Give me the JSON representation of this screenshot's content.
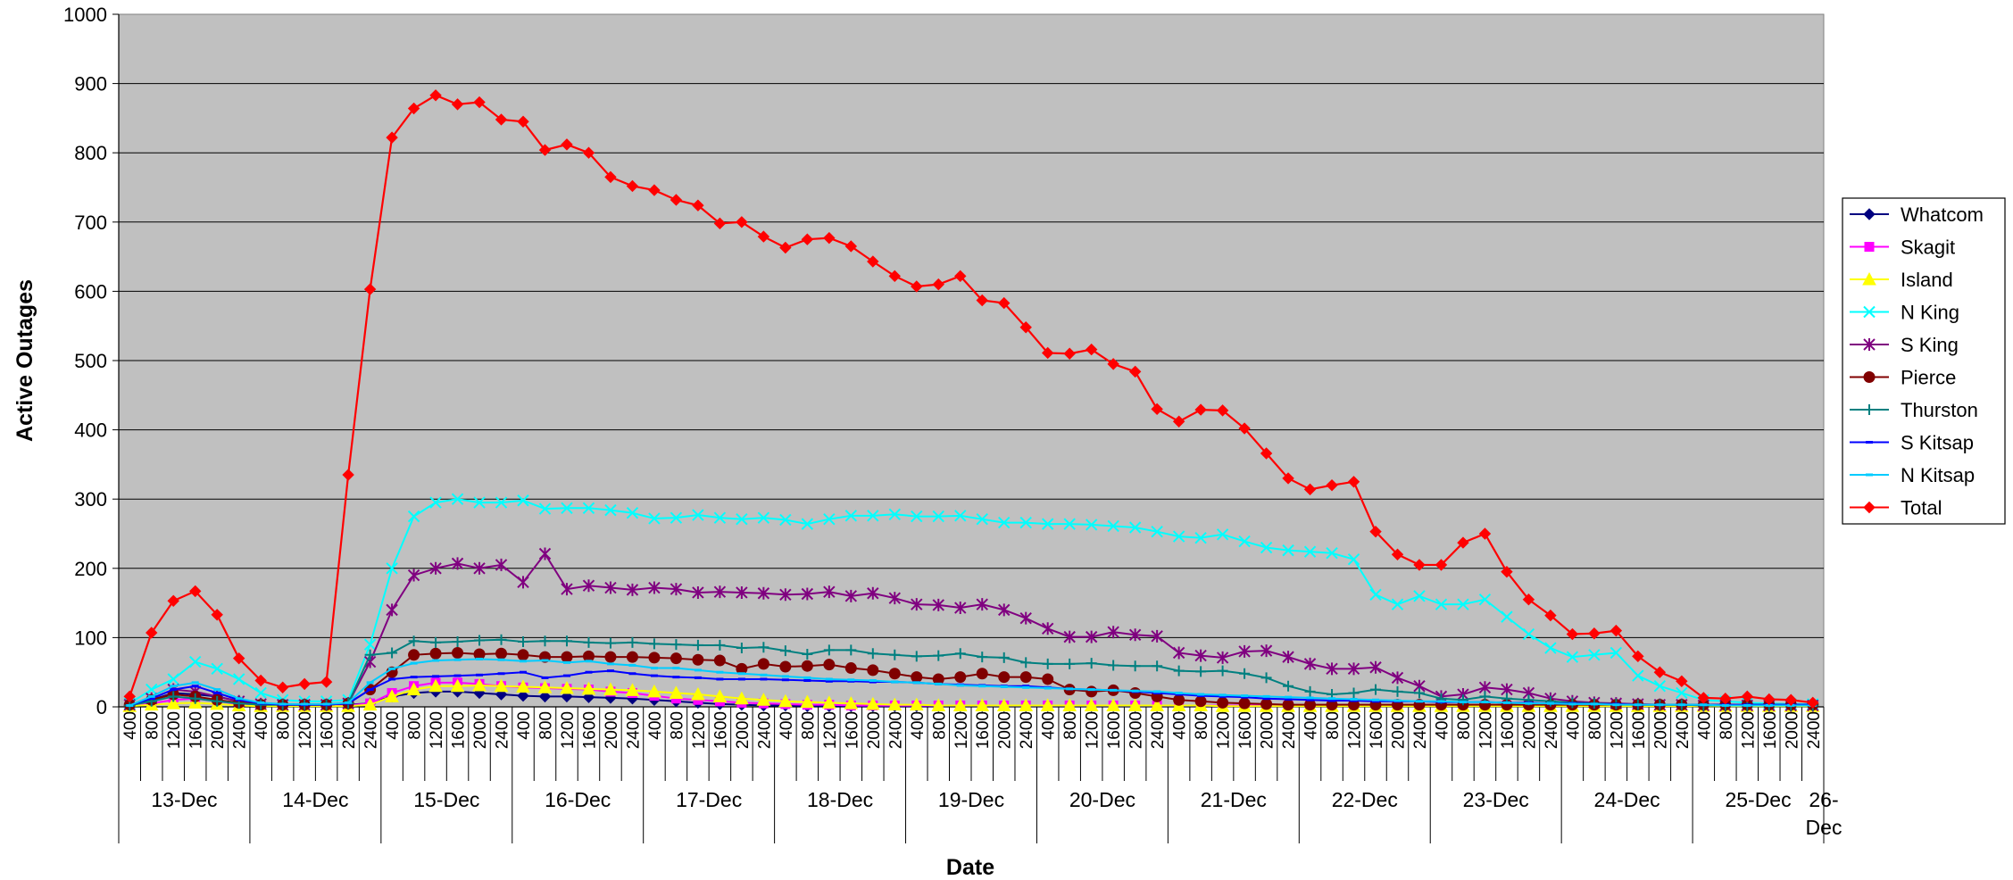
{
  "chart_data": {
    "type": "line",
    "title": "",
    "xlabel": "Date",
    "ylabel": "Active Outages",
    "ylim": [
      0,
      1000
    ],
    "yticks": [
      "0",
      "100",
      "200",
      "300",
      "400",
      "500",
      "600",
      "700",
      "800",
      "900",
      "1000"
    ],
    "grid": true,
    "legend_position": "right",
    "x_tick_labels": [
      "400",
      "800",
      "1200",
      "1600",
      "2000",
      "2400",
      "400",
      "800",
      "1200",
      "1600",
      "2000",
      "2400",
      "400",
      "800",
      "1200",
      "1600",
      "2000",
      "2400",
      "400",
      "800",
      "1200",
      "1600",
      "2000",
      "2400",
      "400",
      "800",
      "1200",
      "1600",
      "2000",
      "2400",
      "400",
      "800",
      "1200",
      "1600",
      "2000",
      "2400",
      "400",
      "800",
      "1200",
      "1600",
      "2000",
      "2400",
      "400",
      "800",
      "1200",
      "1600",
      "2000",
      "2400",
      "400",
      "800",
      "1200",
      "1600",
      "2000",
      "2400",
      "400",
      "800",
      "1200",
      "1600",
      "2000",
      "2400",
      "400",
      "800",
      "1200",
      "1600",
      "2000",
      "2400",
      "400",
      "800",
      "1200",
      "1600",
      "2000",
      "2400",
      "400",
      "800",
      "1200",
      "1600",
      "2000",
      "2400"
    ],
    "day_labels": [
      "13-Dec",
      "14-Dec",
      "15-Dec",
      "16-Dec",
      "17-Dec",
      "18-Dec",
      "19-Dec",
      "20-Dec",
      "21-Dec",
      "22-Dec",
      "23-Dec",
      "24-Dec",
      "25-Dec",
      "26-Dec"
    ],
    "series": [
      {
        "name": "Whatcom",
        "color": "#000080",
        "marker": "diamond",
        "values": [
          2,
          10,
          20,
          18,
          15,
          8,
          4,
          3,
          3,
          3,
          3,
          5,
          15,
          20,
          22,
          22,
          20,
          18,
          16,
          15,
          15,
          14,
          13,
          12,
          10,
          8,
          6,
          4,
          3,
          2,
          2,
          1,
          1,
          1,
          1,
          1,
          1,
          1,
          1,
          1,
          1,
          1,
          1,
          1,
          1,
          1,
          1,
          1,
          1,
          1,
          1,
          1,
          1,
          1,
          1,
          1,
          1,
          1,
          1,
          1,
          1,
          1,
          1,
          1,
          1,
          1,
          1,
          1,
          1,
          1,
          1,
          1,
          1,
          1,
          1,
          1,
          1,
          1
        ]
      },
      {
        "name": "Skagit",
        "color": "#FF00FF",
        "marker": "square",
        "values": [
          1,
          5,
          10,
          12,
          8,
          4,
          2,
          2,
          2,
          2,
          2,
          5,
          20,
          30,
          35,
          35,
          33,
          30,
          28,
          27,
          26,
          25,
          22,
          20,
          16,
          12,
          10,
          8,
          6,
          5,
          4,
          3,
          3,
          2,
          2,
          2,
          2,
          2,
          2,
          2,
          2,
          2,
          2,
          2,
          2,
          2,
          2,
          2,
          2,
          2,
          2,
          2,
          2,
          2,
          2,
          2,
          2,
          2,
          2,
          2,
          2,
          2,
          2,
          2,
          2,
          2,
          2,
          2,
          2,
          2,
          2,
          2,
          2,
          2,
          2,
          2,
          2,
          2
        ]
      },
      {
        "name": "Island",
        "color": "#FFFF00",
        "marker": "triangle",
        "values": [
          1,
          3,
          5,
          6,
          4,
          2,
          1,
          1,
          1,
          1,
          1,
          3,
          15,
          25,
          30,
          30,
          31,
          30,
          29,
          28,
          27,
          26,
          25,
          24,
          22,
          20,
          18,
          15,
          12,
          10,
          8,
          7,
          6,
          5,
          4,
          3,
          3,
          2,
          2,
          2,
          2,
          2,
          2,
          2,
          2,
          2,
          2,
          2,
          2,
          2,
          1,
          1,
          1,
          1,
          1,
          1,
          1,
          1,
          1,
          1,
          1,
          1,
          1,
          1,
          1,
          1,
          1,
          1,
          1,
          1,
          1,
          1,
          1,
          1,
          1,
          1,
          1,
          1
        ]
      },
      {
        "name": "N King",
        "color": "#00FFFF",
        "marker": "x",
        "values": [
          5,
          25,
          40,
          65,
          55,
          40,
          20,
          10,
          8,
          8,
          10,
          90,
          200,
          275,
          295,
          300,
          295,
          295,
          298,
          286,
          287,
          287,
          284,
          280,
          272,
          273,
          277,
          273,
          271,
          273,
          270,
          264,
          271,
          276,
          276,
          278,
          275,
          275,
          276,
          271,
          266,
          266,
          264,
          264,
          263,
          261,
          259,
          253,
          246,
          244,
          249,
          239,
          230,
          226,
          224,
          222,
          213,
          162,
          148,
          160,
          148,
          148,
          155,
          130,
          105,
          85,
          72,
          75,
          78,
          45,
          30,
          20,
          10,
          8,
          6,
          5,
          4,
          4
        ]
      },
      {
        "name": "S King",
        "color": "#800080",
        "marker": "star",
        "values": [
          3,
          12,
          25,
          22,
          15,
          8,
          4,
          3,
          3,
          3,
          5,
          65,
          140,
          190,
          200,
          207,
          200,
          205,
          180,
          221,
          170,
          175,
          172,
          169,
          172,
          170,
          165,
          166,
          165,
          164,
          162,
          163,
          166,
          160,
          164,
          157,
          148,
          147,
          143,
          148,
          140,
          128,
          113,
          101,
          101,
          108,
          104,
          102,
          78,
          74,
          71,
          80,
          81,
          72,
          62,
          55,
          55,
          57,
          42,
          30,
          15,
          18,
          28,
          25,
          20,
          12,
          8,
          6,
          5,
          4,
          3,
          3,
          2,
          2,
          2,
          2,
          2,
          2
        ]
      },
      {
        "name": "Pierce",
        "color": "#800000",
        "marker": "circle",
        "values": [
          3,
          10,
          18,
          15,
          10,
          6,
          3,
          3,
          3,
          3,
          5,
          25,
          50,
          75,
          77,
          78,
          76,
          77,
          75,
          72,
          72,
          73,
          72,
          72,
          71,
          70,
          68,
          67,
          55,
          62,
          58,
          59,
          61,
          56,
          53,
          48,
          43,
          40,
          43,
          48,
          43,
          43,
          40,
          25,
          22,
          24,
          20,
          15,
          10,
          8,
          6,
          5,
          4,
          3,
          3,
          3,
          3,
          3,
          3,
          3,
          3,
          3,
          3,
          3,
          3,
          3,
          3,
          3,
          3,
          3,
          3,
          3,
          3,
          3,
          3,
          3,
          3,
          3
        ]
      },
      {
        "name": "Thurston",
        "color": "#008080",
        "marker": "plus",
        "values": [
          2,
          8,
          15,
          12,
          8,
          5,
          3,
          3,
          3,
          3,
          5,
          75,
          78,
          95,
          93,
          94,
          96,
          97,
          94,
          95,
          95,
          93,
          92,
          93,
          91,
          90,
          89,
          89,
          85,
          86,
          81,
          76,
          82,
          82,
          77,
          75,
          73,
          74,
          77,
          72,
          71,
          64,
          62,
          62,
          63,
          60,
          59,
          59,
          52,
          51,
          52,
          48,
          42,
          30,
          22,
          18,
          20,
          25,
          22,
          20,
          12,
          10,
          15,
          12,
          10,
          8,
          6,
          5,
          4,
          3,
          3,
          3,
          2,
          2,
          2,
          2,
          2,
          2
        ]
      },
      {
        "name": "S Kitsap",
        "color": "#0000FF",
        "marker": "dash",
        "values": [
          2,
          12,
          25,
          30,
          20,
          10,
          5,
          3,
          3,
          3,
          5,
          25,
          40,
          43,
          44,
          45,
          46,
          48,
          50,
          42,
          45,
          50,
          52,
          48,
          45,
          43,
          42,
          40,
          40,
          40,
          39,
          38,
          37,
          37,
          36,
          36,
          35,
          33,
          32,
          31,
          30,
          30,
          28,
          26,
          25,
          24,
          22,
          20,
          18,
          16,
          15,
          14,
          12,
          11,
          10,
          9,
          9,
          8,
          8,
          8,
          7,
          7,
          7,
          6,
          6,
          5,
          5,
          4,
          4,
          3,
          3,
          3,
          3,
          3,
          3,
          3,
          3,
          3
        ]
      },
      {
        "name": "N Kitsap",
        "color": "#00CCFF",
        "marker": "dash",
        "values": [
          2,
          15,
          30,
          35,
          25,
          12,
          6,
          4,
          4,
          4,
          6,
          35,
          55,
          63,
          67,
          68,
          69,
          68,
          66,
          67,
          64,
          66,
          62,
          60,
          56,
          56,
          53,
          50,
          48,
          46,
          44,
          42,
          40,
          39,
          38,
          36,
          35,
          33,
          31,
          30,
          29,
          28,
          27,
          26,
          25,
          24,
          23,
          22,
          20,
          18,
          17,
          16,
          15,
          14,
          13,
          12,
          11,
          10,
          9,
          8,
          8,
          7,
          7,
          6,
          5,
          5,
          4,
          4,
          3,
          3,
          3,
          3,
          3,
          2,
          2,
          2,
          2,
          2
        ]
      },
      {
        "name": "Total",
        "color": "#FF0000",
        "marker": "diamond",
        "values": [
          15,
          107,
          153,
          167,
          133,
          70,
          38,
          28,
          33,
          36,
          335,
          603,
          822,
          864,
          883,
          870,
          873,
          848,
          845,
          804,
          812,
          800,
          765,
          752,
          746,
          732,
          724,
          698,
          700,
          679,
          663,
          675,
          677,
          665,
          643,
          622,
          607,
          610,
          622,
          587,
          583,
          548,
          511,
          510,
          516,
          495,
          484,
          430,
          412,
          429,
          428,
          402,
          366,
          330,
          314,
          320,
          325,
          253,
          220,
          205,
          205,
          237,
          250,
          195,
          155,
          132,
          105,
          106,
          110,
          73,
          50,
          37,
          13,
          12,
          15,
          11,
          10,
          6
        ]
      }
    ]
  }
}
